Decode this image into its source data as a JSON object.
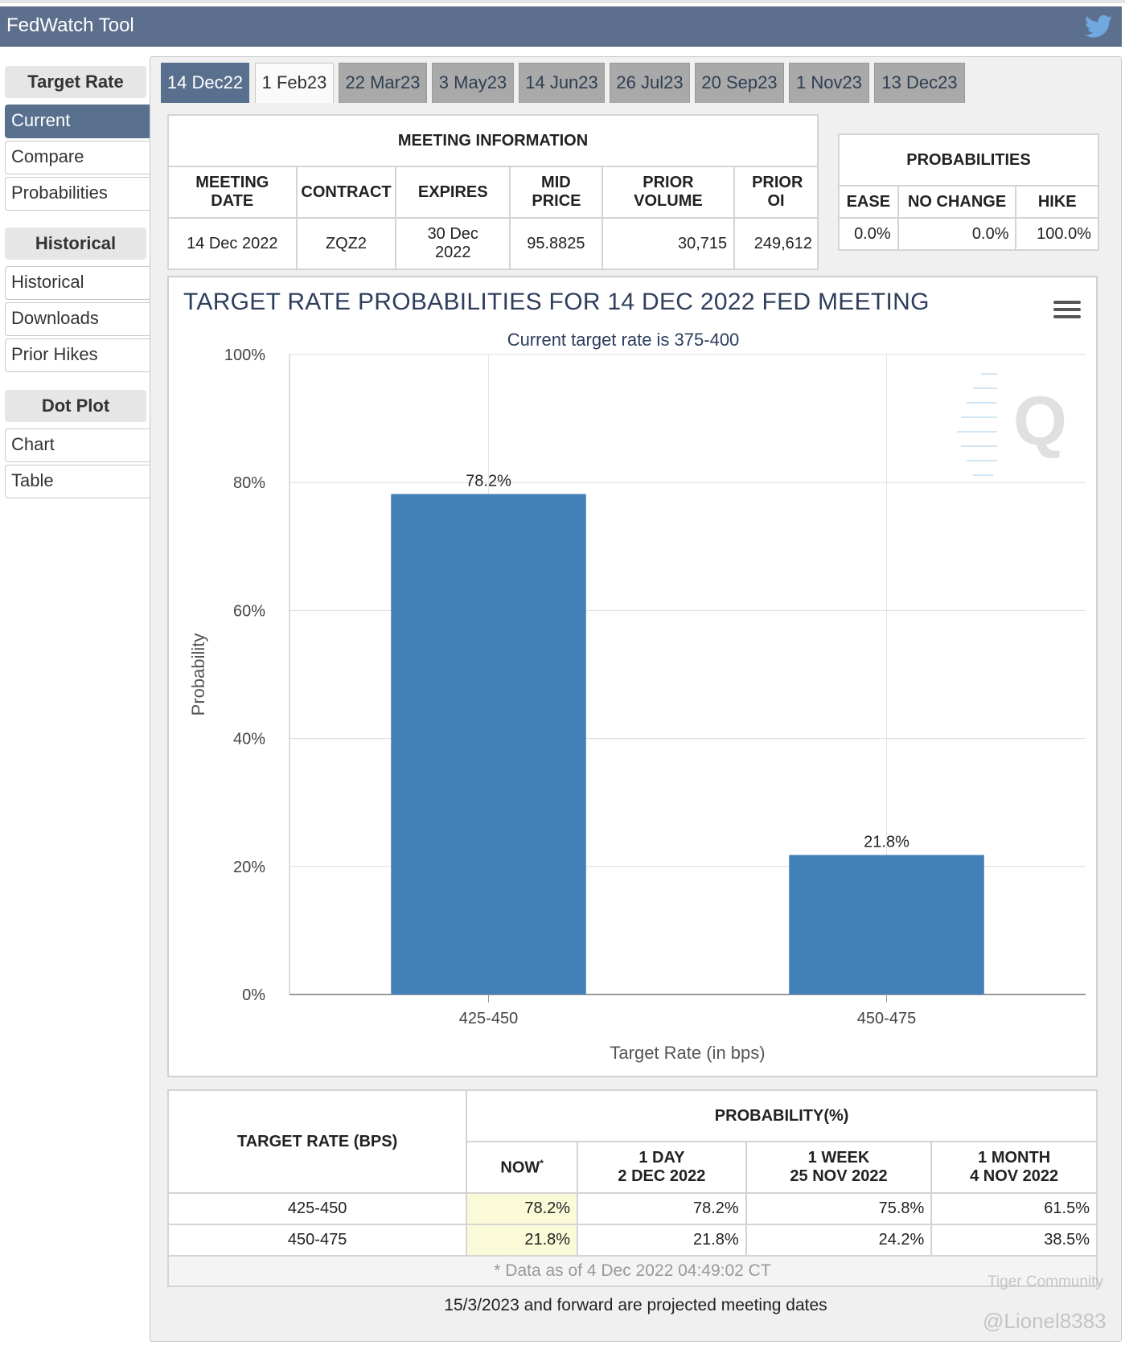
{
  "app": {
    "title": "FedWatch Tool"
  },
  "sidebar": {
    "sections": [
      {
        "heading": "Target Rate",
        "items": [
          "Current",
          "Compare",
          "Probabilities"
        ]
      },
      {
        "heading": "Historical",
        "items": [
          "Historical",
          "Downloads",
          "Prior Hikes"
        ]
      },
      {
        "heading": "Dot Plot",
        "items": [
          "Chart",
          "Table"
        ]
      }
    ]
  },
  "tabs": [
    "14 Dec22",
    "1 Feb23",
    "22 Mar23",
    "3 May23",
    "14 Jun23",
    "26 Jul23",
    "20 Sep23",
    "1 Nov23",
    "13 Dec23"
  ],
  "meeting_info": {
    "title": "MEETING INFORMATION",
    "headers": {
      "meeting_date": "MEETING DATE",
      "contract": "CONTRACT",
      "expires": "EXPIRES",
      "mid_price": "MID PRICE",
      "prior_volume": "PRIOR VOLUME",
      "prior_oi": "PRIOR OI"
    },
    "values": {
      "meeting_date": "14 Dec 2022",
      "contract": "ZQZ2",
      "expires": "30 Dec 2022",
      "mid_price": "95.8825",
      "prior_volume": "30,715",
      "prior_oi": "249,612"
    }
  },
  "probabilities": {
    "title": "PROBABILITIES",
    "headers": {
      "ease": "EASE",
      "no_change": "NO CHANGE",
      "hike": "HIKE"
    },
    "values": {
      "ease": "0.0%",
      "no_change": "0.0%",
      "hike": "100.0%"
    }
  },
  "chart_data": {
    "type": "bar",
    "title": "TARGET RATE PROBABILITIES FOR 14 DEC 2022 FED MEETING",
    "subtitle": "Current target rate is 375-400",
    "categories": [
      "425-450",
      "450-475"
    ],
    "values": [
      78.2,
      21.8
    ],
    "data_labels": [
      "78.2%",
      "21.8%"
    ],
    "xlabel": "Target Rate (in bps)",
    "ylabel": "Probability",
    "ylim": [
      0,
      100
    ],
    "yticks": [
      "0%",
      "20%",
      "40%",
      "60%",
      "80%",
      "100%"
    ],
    "grid": true,
    "bar_color": "#4380b8"
  },
  "bottom_table": {
    "target_rate_header": "TARGET RATE (BPS)",
    "probability_header": "PROBABILITY(%)",
    "columns": [
      {
        "line1": "NOW",
        "line2": "*"
      },
      {
        "line1": "1 DAY",
        "line2": "2 DEC 2022"
      },
      {
        "line1": "1 WEEK",
        "line2": "25 NOV 2022"
      },
      {
        "line1": "1 MONTH",
        "line2": "4 NOV 2022"
      }
    ],
    "rows": [
      {
        "rate": "425-450",
        "now": "78.2%",
        "day": "78.2%",
        "week": "75.8%",
        "month": "61.5%"
      },
      {
        "rate": "450-475",
        "now": "21.8%",
        "day": "21.8%",
        "week": "24.2%",
        "month": "38.5%"
      }
    ],
    "note": "* Data as of 4 Dec 2022 04:49:02 CT"
  },
  "footer": "15/3/2023 and forward are projected meeting dates",
  "watermarks": {
    "community": "Tiger Community",
    "user": "@Lionel8383"
  }
}
